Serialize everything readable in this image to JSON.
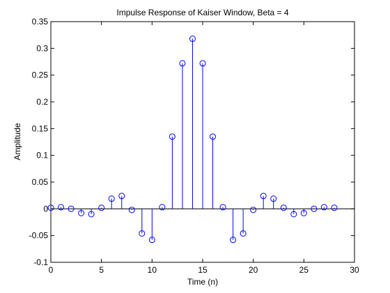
{
  "chart_data": {
    "type": "stem",
    "title": "Impulse Response of Kaiser Window, Beta = 4",
    "xlabel": "Time (n)",
    "ylabel": "Amplitude",
    "xlim": [
      0,
      30
    ],
    "ylim": [
      -0.1,
      0.35
    ],
    "xticks": [
      0,
      5,
      10,
      15,
      20,
      25,
      30
    ],
    "xtick_labels": [
      "0",
      "5",
      "10",
      "15",
      "20",
      "25",
      "30"
    ],
    "yticks": [
      -0.1,
      -0.05,
      0,
      0.05,
      0.1,
      0.15,
      0.2,
      0.25,
      0.3,
      0.35
    ],
    "ytick_labels": [
      "-0.1",
      "-0.05",
      "0",
      "0.05",
      "0.1",
      "0.15",
      "0.2",
      "0.25",
      "0.3",
      "0.35"
    ],
    "grid": false,
    "baseline": 0,
    "series": [
      {
        "color": "#0000ff",
        "marker": "open-circle",
        "x": [
          0,
          1,
          2,
          3,
          4,
          5,
          6,
          7,
          8,
          9,
          10,
          11,
          12,
          13,
          14,
          15,
          16,
          17,
          18,
          19,
          20,
          21,
          22,
          23,
          24,
          25,
          26,
          27,
          28
        ],
        "y": [
          0.002,
          0.003,
          0.0,
          -0.008,
          -0.01,
          0.002,
          0.019,
          0.024,
          -0.002,
          -0.046,
          -0.058,
          0.003,
          0.135,
          0.272,
          0.318,
          0.272,
          0.135,
          0.003,
          -0.058,
          -0.046,
          -0.002,
          0.024,
          0.019,
          0.002,
          -0.01,
          -0.008,
          0.0,
          0.003,
          0.002
        ]
      }
    ]
  }
}
